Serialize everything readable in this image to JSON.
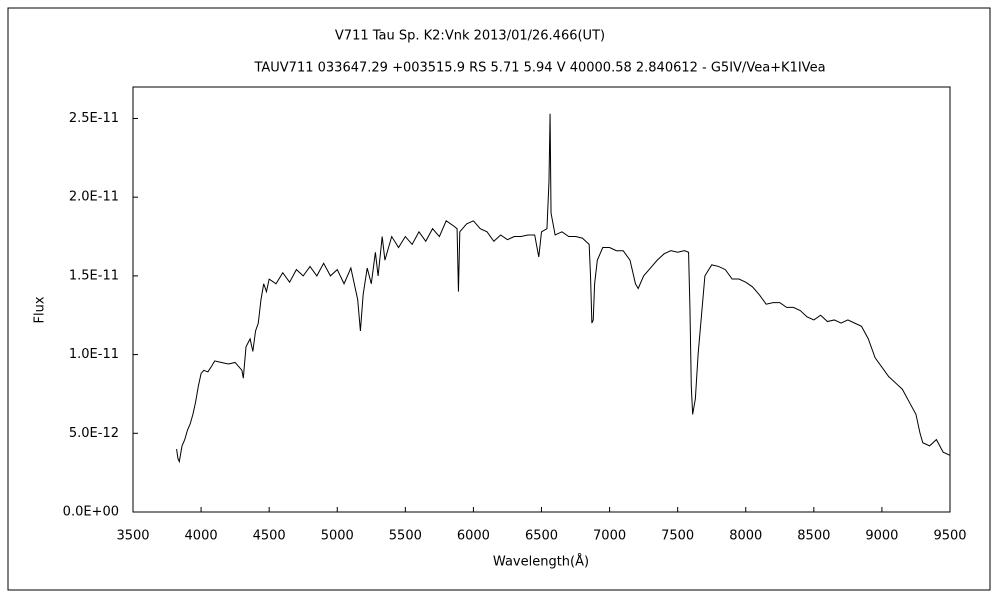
{
  "chart_data": {
    "type": "line",
    "title": "V711 Tau    Sp. K2:Vnk    2013/01/26.466(UT)",
    "subtitle": "TAUV711 033647.29 +003515.9 RS 5.71 5.94 V 40000.58 2.840612 - G5IV/Vea+K1IVea",
    "xlabel": "Wavelength(Å)",
    "ylabel": "Flux",
    "color": "#000000",
    "xlim": [
      3500,
      9500
    ],
    "xticks": [
      3500,
      4000,
      4500,
      5000,
      5500,
      6000,
      6500,
      7000,
      7500,
      8000,
      8500,
      9000,
      9500
    ],
    "ylim": [
      0,
      2.7e-11
    ],
    "yticks": [
      {
        "value": 0,
        "label": "0.0E+00"
      },
      {
        "value": 5e-12,
        "label": "5.0E-12"
      },
      {
        "value": 1e-11,
        "label": "1.0E-11"
      },
      {
        "value": 1.5e-11,
        "label": "1.5E-11"
      },
      {
        "value": 2e-11,
        "label": "2.0E-11"
      },
      {
        "value": 2.5e-11,
        "label": "2.5E-11"
      }
    ],
    "x": [
      3820,
      3830,
      3840,
      3860,
      3880,
      3900,
      3920,
      3940,
      3960,
      3980,
      4000,
      4020,
      4050,
      4080,
      4100,
      4150,
      4200,
      4250,
      4300,
      4310,
      4330,
      4360,
      4380,
      4400,
      4420,
      4440,
      4460,
      4480,
      4500,
      4550,
      4600,
      4650,
      4700,
      4750,
      4800,
      4850,
      4900,
      4950,
      5000,
      5050,
      5100,
      5150,
      5170,
      5190,
      5220,
      5250,
      5280,
      5300,
      5330,
      5350,
      5400,
      5450,
      5500,
      5550,
      5600,
      5650,
      5700,
      5750,
      5800,
      5850,
      5880,
      5890,
      5900,
      5950,
      6000,
      6050,
      6100,
      6150,
      6200,
      6250,
      6300,
      6350,
      6400,
      6450,
      6480,
      6500,
      6540,
      6555,
      6563,
      6570,
      6600,
      6650,
      6700,
      6750,
      6800,
      6850,
      6860,
      6870,
      6880,
      6890,
      6910,
      6950,
      7000,
      7050,
      7100,
      7150,
      7190,
      7210,
      7250,
      7300,
      7350,
      7400,
      7450,
      7500,
      7550,
      7580,
      7590,
      7600,
      7610,
      7630,
      7650,
      7680,
      7700,
      7750,
      7800,
      7850,
      7900,
      7950,
      8000,
      8050,
      8100,
      8150,
      8200,
      8250,
      8300,
      8350,
      8400,
      8450,
      8500,
      8550,
      8600,
      8650,
      8700,
      8750,
      8800,
      8850,
      8900,
      8950,
      9000,
      9050,
      9100,
      9150,
      9200,
      9250,
      9280,
      9300,
      9350,
      9400,
      9450,
      9500
    ],
    "values": [
      4e-12,
      3.4e-12,
      3.2e-12,
      4.2e-12,
      4.6e-12,
      5.2e-12,
      5.6e-12,
      6.2e-12,
      7e-12,
      8e-12,
      8.8e-12,
      9e-12,
      8.9e-12,
      9.3e-12,
      9.6e-12,
      9.5e-12,
      9.4e-12,
      9.5e-12,
      9e-12,
      8.5e-12,
      1.05e-11,
      1.1e-11,
      1.02e-11,
      1.15e-11,
      1.2e-11,
      1.35e-11,
      1.45e-11,
      1.4e-11,
      1.48e-11,
      1.45e-11,
      1.52e-11,
      1.46e-11,
      1.54e-11,
      1.5e-11,
      1.56e-11,
      1.5e-11,
      1.58e-11,
      1.5e-11,
      1.54e-11,
      1.45e-11,
      1.55e-11,
      1.35e-11,
      1.15e-11,
      1.38e-11,
      1.55e-11,
      1.45e-11,
      1.65e-11,
      1.5e-11,
      1.75e-11,
      1.6e-11,
      1.75e-11,
      1.68e-11,
      1.75e-11,
      1.7e-11,
      1.78e-11,
      1.72e-11,
      1.8e-11,
      1.75e-11,
      1.85e-11,
      1.82e-11,
      1.8e-11,
      1.4e-11,
      1.78e-11,
      1.83e-11,
      1.85e-11,
      1.8e-11,
      1.78e-11,
      1.72e-11,
      1.76e-11,
      1.73e-11,
      1.75e-11,
      1.75e-11,
      1.76e-11,
      1.76e-11,
      1.62e-11,
      1.78e-11,
      1.8e-11,
      2.1e-11,
      2.53e-11,
      1.9e-11,
      1.76e-11,
      1.78e-11,
      1.75e-11,
      1.75e-11,
      1.74e-11,
      1.7e-11,
      1.5e-11,
      1.2e-11,
      1.22e-11,
      1.45e-11,
      1.6e-11,
      1.68e-11,
      1.68e-11,
      1.66e-11,
      1.66e-11,
      1.6e-11,
      1.45e-11,
      1.42e-11,
      1.5e-11,
      1.55e-11,
      1.6e-11,
      1.64e-11,
      1.66e-11,
      1.65e-11,
      1.66e-11,
      1.65e-11,
      1.3e-11,
      8e-12,
      6.2e-12,
      7.2e-12,
      1e-11,
      1.3e-11,
      1.5e-11,
      1.57e-11,
      1.56e-11,
      1.54e-11,
      1.48e-11,
      1.48e-11,
      1.46e-11,
      1.43e-11,
      1.38e-11,
      1.32e-11,
      1.33e-11,
      1.33e-11,
      1.3e-11,
      1.3e-11,
      1.28e-11,
      1.24e-11,
      1.22e-11,
      1.25e-11,
      1.21e-11,
      1.22e-11,
      1.2e-11,
      1.22e-11,
      1.2e-11,
      1.18e-11,
      1.1e-11,
      9.8e-12,
      9.2e-12,
      8.6e-12,
      8.2e-12,
      7.8e-12,
      7e-12,
      6.2e-12,
      5e-12,
      4.4e-12,
      4.2e-12,
      4.6e-12,
      3.8e-12,
      3.6e-12
    ]
  }
}
